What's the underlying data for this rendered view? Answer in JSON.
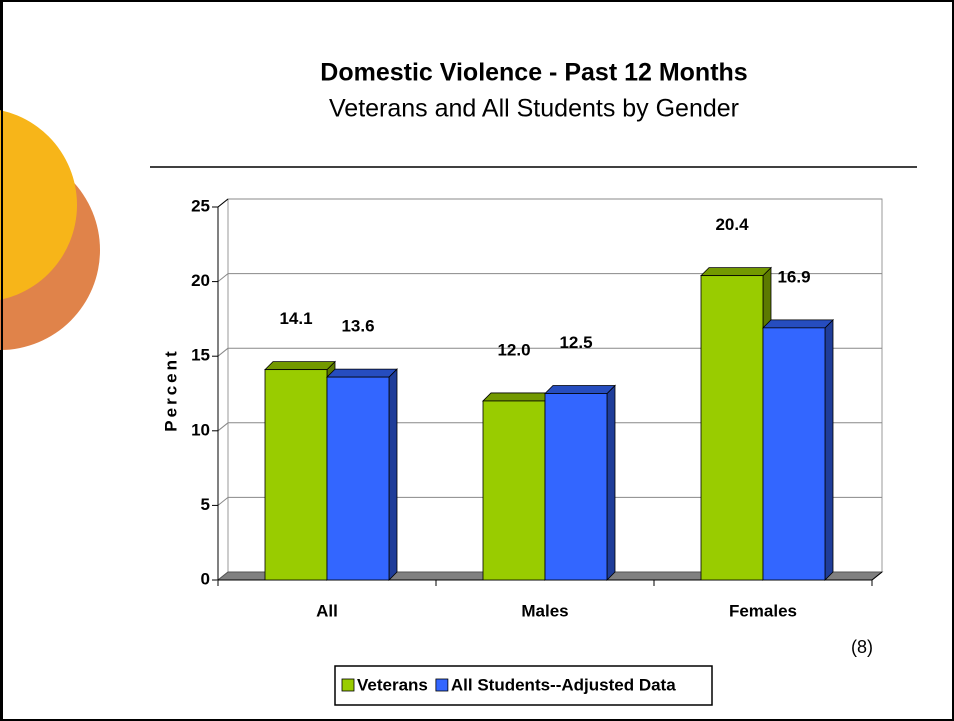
{
  "chart_data": {
    "type": "bar",
    "title": "Domestic Violence - Past 12 Months",
    "subtitle": "Veterans and All Students by Gender",
    "ylabel": "Percent",
    "annotation": "(8)",
    "categories": [
      "All",
      "Males",
      "Females"
    ],
    "series": [
      {
        "name": "Veterans",
        "color": "#99CC00",
        "values": [
          14.1,
          12.0,
          20.4
        ],
        "value_labels": [
          "14.1",
          "12.0",
          "20.4"
        ]
      },
      {
        "name": "All Students--Adjusted Data",
        "color": "#3366FF",
        "values": [
          13.6,
          12.5,
          16.9
        ],
        "value_labels": [
          "13.6",
          "12.5",
          "16.9"
        ]
      }
    ],
    "ylim": [
      0,
      25
    ],
    "yticks": [
      0,
      5,
      10,
      15,
      20,
      25
    ],
    "grid": true,
    "legend": "bottom"
  }
}
